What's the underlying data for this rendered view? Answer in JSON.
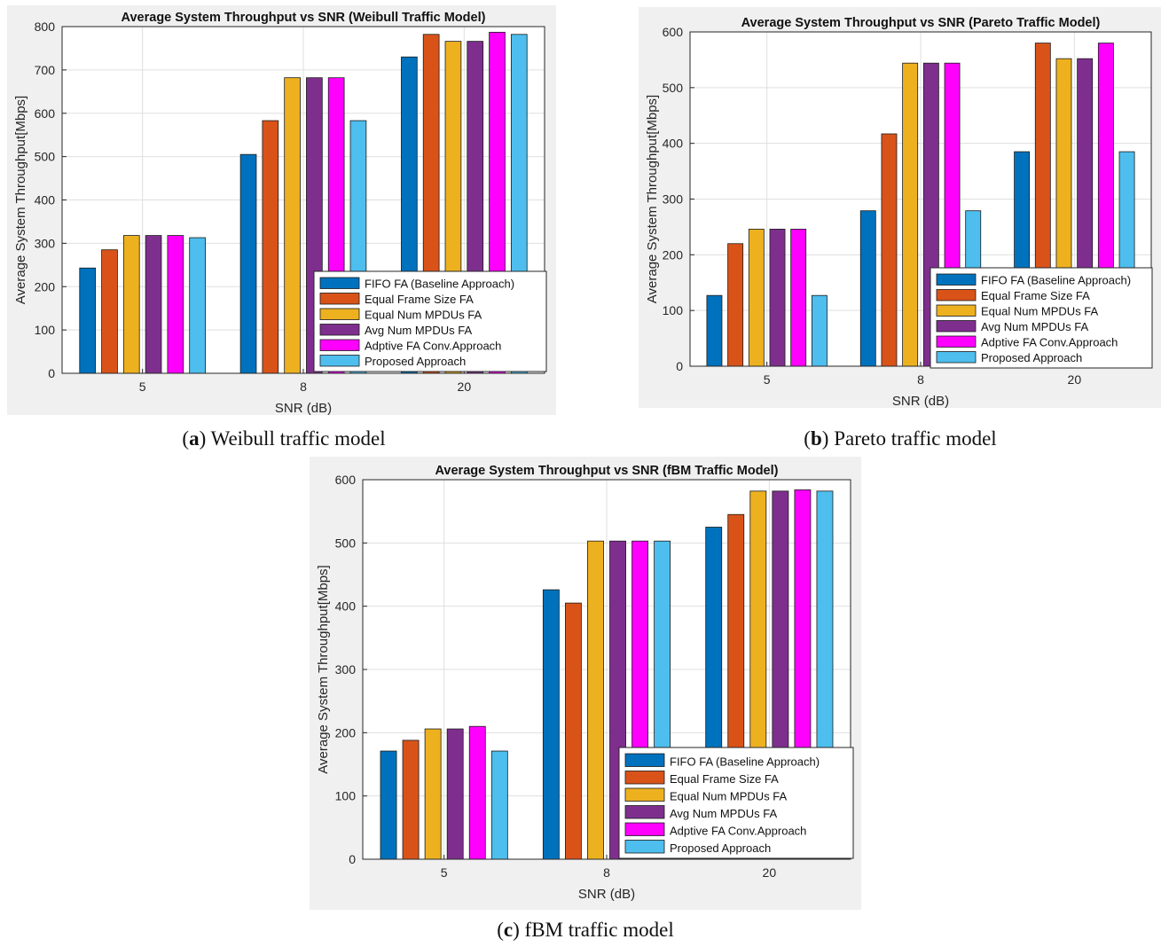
{
  "colors": {
    "series": [
      "#0072BD",
      "#D95319",
      "#EDB120",
      "#7E2F8E",
      "#FF00FF",
      "#4DBEEE"
    ],
    "panel_bg": "#f0f0f0",
    "axes_bg": "#ffffff",
    "grid": "#dfdfdf"
  },
  "captions": [
    {
      "letter": "a",
      "text": " Weibull traffic model"
    },
    {
      "letter": "b",
      "text": " Pareto traffic model"
    },
    {
      "letter": "c",
      "text": " fBM traffic model"
    }
  ],
  "chart_data": [
    {
      "type": "bar",
      "title": "Average System Throughput vs SNR (Weibull Traffic Model)",
      "xlabel": "SNR (dB)",
      "ylabel": "Average System Throughput[Mbps]",
      "categories": [
        "5",
        "8",
        "20"
      ],
      "ylim": [
        0,
        800
      ],
      "yticks": [
        0,
        100,
        200,
        300,
        400,
        500,
        600,
        700,
        800
      ],
      "grid": true,
      "legend_position": "bottom-right",
      "series": [
        {
          "name": "FIFO FA (Baseline Approach)",
          "values": [
            243,
            505,
            730
          ]
        },
        {
          "name": "Equal Frame Size FA",
          "values": [
            285,
            583,
            782
          ]
        },
        {
          "name": "Equal Num MPDUs FA",
          "values": [
            318,
            682,
            766
          ]
        },
        {
          "name": "Avg Num MPDUs FA",
          "values": [
            318,
            682,
            766
          ]
        },
        {
          "name": "Adptive FA Conv.Approach",
          "values": [
            318,
            682,
            787
          ]
        },
        {
          "name": "Proposed Approach",
          "values": [
            313,
            583,
            782
          ]
        }
      ]
    },
    {
      "type": "bar",
      "title": "Average System Throughput vs SNR (Pareto Traffic Model)",
      "xlabel": "SNR (dB)",
      "ylabel": "Average System Throughput[Mbps]",
      "categories": [
        "5",
        "8",
        "20"
      ],
      "ylim": [
        0,
        600
      ],
      "yticks": [
        0,
        100,
        200,
        300,
        400,
        500,
        600
      ],
      "grid": true,
      "legend_position": "bottom-right",
      "series": [
        {
          "name": "FIFO FA (Baseline Approach)",
          "values": [
            127,
            279,
            385
          ]
        },
        {
          "name": "Equal Frame Size FA",
          "values": [
            220,
            417,
            580
          ]
        },
        {
          "name": "Equal Num MPDUs FA",
          "values": [
            246,
            544,
            552
          ]
        },
        {
          "name": "Avg Num MPDUs FA",
          "values": [
            246,
            544,
            552
          ]
        },
        {
          "name": "Adptive FA Conv.Approach",
          "values": [
            246,
            544,
            580
          ]
        },
        {
          "name": "Proposed Approach",
          "values": [
            127,
            279,
            385
          ]
        }
      ]
    },
    {
      "type": "bar",
      "title": "Average System Throughput vs SNR (fBM Traffic Model)",
      "xlabel": "SNR (dB)",
      "ylabel": "Average System Throughput[Mbps]",
      "categories": [
        "5",
        "8",
        "20"
      ],
      "ylim": [
        0,
        600
      ],
      "yticks": [
        0,
        100,
        200,
        300,
        400,
        500,
        600
      ],
      "grid": true,
      "legend_position": "bottom-right",
      "series": [
        {
          "name": "FIFO FA (Baseline Approach)",
          "values": [
            171,
            426,
            525
          ]
        },
        {
          "name": "Equal Frame Size FA",
          "values": [
            188,
            405,
            545
          ]
        },
        {
          "name": "Equal Num MPDUs FA",
          "values": [
            206,
            503,
            582
          ]
        },
        {
          "name": "Avg Num MPDUs FA",
          "values": [
            206,
            503,
            582
          ]
        },
        {
          "name": "Adptive FA Conv.Approach",
          "values": [
            210,
            503,
            584
          ]
        },
        {
          "name": "Proposed Approach",
          "values": [
            171,
            503,
            582
          ]
        }
      ]
    }
  ]
}
